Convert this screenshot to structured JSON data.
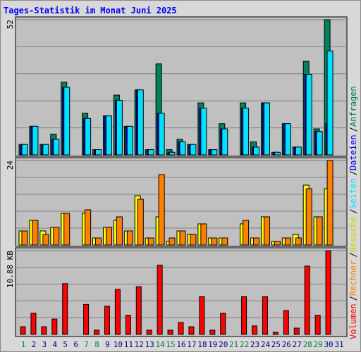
{
  "title": "Tages-Statistik im Monat Juni 2025",
  "separator": "/",
  "chart_data": [
    {
      "type": "bar",
      "categories": [
        "1",
        "2",
        "3",
        "4",
        "5",
        "6",
        "7",
        "8",
        "9",
        "10",
        "11",
        "12",
        "13",
        "14",
        "15",
        "16",
        "17",
        "18",
        "19",
        "20",
        "21",
        "22",
        "23",
        "24",
        "25",
        "26",
        "27",
        "28",
        "29",
        "30",
        "31"
      ],
      "category_colors": [
        "#008040",
        "#000080",
        "#000080",
        "#000080",
        "#000080",
        "#000080",
        "#008040",
        "#008040",
        "#000080",
        "#000080",
        "#000080",
        "#000080",
        "#000080",
        "#008040",
        "#008040",
        "#000080",
        "#000080",
        "#000080",
        "#000080",
        "#000080",
        "#008040",
        "#008040",
        "#000080",
        "#000080",
        "#000080",
        "#000080",
        "#000080",
        "#008040",
        "#008040",
        "#000080",
        "#000080"
      ],
      "ylim": [
        0,
        52
      ],
      "yticks": [
        52
      ],
      "series": [
        {
          "name": "Anfragen",
          "color": "#00805c",
          "values": [
            4,
            11,
            4,
            8,
            28,
            0,
            16,
            2,
            15,
            23,
            11,
            25,
            2,
            35,
            2,
            6,
            4,
            20,
            2,
            12,
            0,
            20,
            5,
            20,
            1,
            12,
            3,
            36,
            10,
            52,
            0
          ]
        },
        {
          "name": "Dateien",
          "color": "#0000ff",
          "values": [
            4,
            11,
            4,
            6,
            26,
            0,
            14,
            2,
            15,
            21,
            11,
            25,
            2,
            16,
            1,
            5,
            4,
            18,
            2,
            10,
            0,
            18,
            3,
            20,
            1,
            12,
            3,
            31,
            9,
            12,
            0
          ]
        },
        {
          "name": "Seiten",
          "color": "#00e0ff",
          "values": [
            4,
            11,
            4,
            6,
            26,
            0,
            14,
            2,
            15,
            21,
            11,
            25,
            2,
            16,
            1,
            5,
            4,
            18,
            2,
            10,
            0,
            18,
            3,
            20,
            1,
            12,
            3,
            31,
            9,
            40,
            0
          ]
        }
      ]
    },
    {
      "type": "bar",
      "ylim": [
        0,
        24
      ],
      "yticks": [
        24
      ],
      "series": [
        {
          "name": "Besuche",
          "color": "#ffff00",
          "values": [
            4,
            7,
            4,
            5,
            9,
            0,
            9,
            2,
            5,
            7,
            4,
            14,
            2,
            8,
            1,
            4,
            3,
            6,
            2,
            2,
            0,
            6,
            2,
            8,
            1,
            2,
            3,
            17,
            8,
            16,
            0
          ]
        },
        {
          "name": "Rechner",
          "color": "#ff8000",
          "values": [
            4,
            7,
            3,
            5,
            9,
            0,
            10,
            2,
            5,
            8,
            4,
            13,
            2,
            20,
            2,
            4,
            3,
            6,
            2,
            2,
            0,
            7,
            2,
            8,
            1,
            2,
            2,
            16,
            8,
            24,
            0
          ]
        }
      ]
    },
    {
      "type": "bar",
      "ylim": [
        0,
        10.88
      ],
      "yticks": [
        {
          "value": 10.88,
          "label": "10.88 KB"
        }
      ],
      "series": [
        {
          "name": "Volumen",
          "color": "#ff0000",
          "values": [
            1.0,
            2.74,
            1.0,
            2.0,
            6.6,
            0,
            3.9,
            0.55,
            3.66,
            5.85,
            2.47,
            6.2,
            0.55,
            9.0,
            0.55,
            1.55,
            1.0,
            4.9,
            0.55,
            2.74,
            0,
            4.9,
            1.1,
            4.9,
            0.27,
            3.1,
            0.82,
            8.87,
            2.47,
            10.88,
            0
          ]
        }
      ]
    }
  ]
}
